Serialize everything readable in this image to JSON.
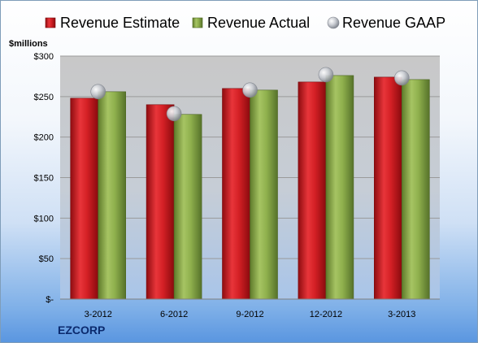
{
  "chart_data": {
    "type": "bar",
    "title": "",
    "xlabel": "",
    "ylabel": "$millions",
    "brand": "EZCORP",
    "categories": [
      "3-2012",
      "6-2012",
      "9-2012",
      "12-2012",
      "3-2013"
    ],
    "series": [
      {
        "name": "Revenue Estimate",
        "type": "bar",
        "color": "#d42025",
        "values": [
          248,
          240,
          260,
          268,
          274
        ]
      },
      {
        "name": "Revenue Actual",
        "type": "bar",
        "color": "#8fb04d",
        "values": [
          256,
          228,
          258,
          276,
          271
        ]
      },
      {
        "name": "Revenue GAAP",
        "type": "scatter",
        "color": "#b8bcc4",
        "values": [
          256,
          229,
          258,
          277,
          273
        ]
      }
    ],
    "ylim": [
      0,
      300
    ],
    "yticks": [
      0,
      50,
      100,
      150,
      200,
      250,
      300
    ],
    "ytick_labels": [
      "$-",
      "$50",
      "$100",
      "$150",
      "$200",
      "$250",
      "$300"
    ],
    "grid": true,
    "legend_position": "top"
  }
}
